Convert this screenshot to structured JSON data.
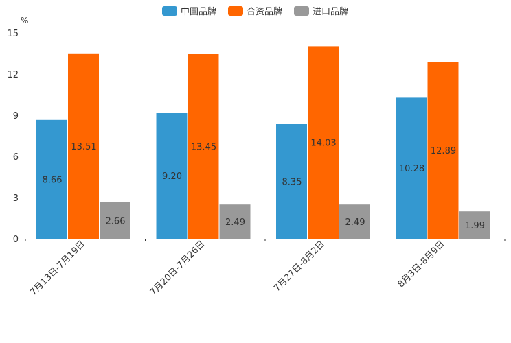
{
  "chart_data": {
    "type": "bar",
    "title": "",
    "ylabel": "%",
    "xlabel": "",
    "ylim": [
      0,
      15
    ],
    "yticks": [
      0,
      3,
      6,
      9,
      12,
      15
    ],
    "categories": [
      "7月13日-7月19日",
      "7月20日-7月26日",
      "7月27日-8月2日",
      "8月3日-8月9日"
    ],
    "series": [
      {
        "name": "中国品牌",
        "color": "#3498d0",
        "values": [
          8.66,
          9.2,
          8.35,
          10.28
        ]
      },
      {
        "name": "合资品牌",
        "color": "#ff6600",
        "values": [
          13.51,
          13.45,
          14.03,
          12.89
        ]
      },
      {
        "name": "进口品牌",
        "color": "#999999",
        "values": [
          2.66,
          2.49,
          2.49,
          1.99
        ]
      }
    ],
    "legend_position": "top-center"
  }
}
